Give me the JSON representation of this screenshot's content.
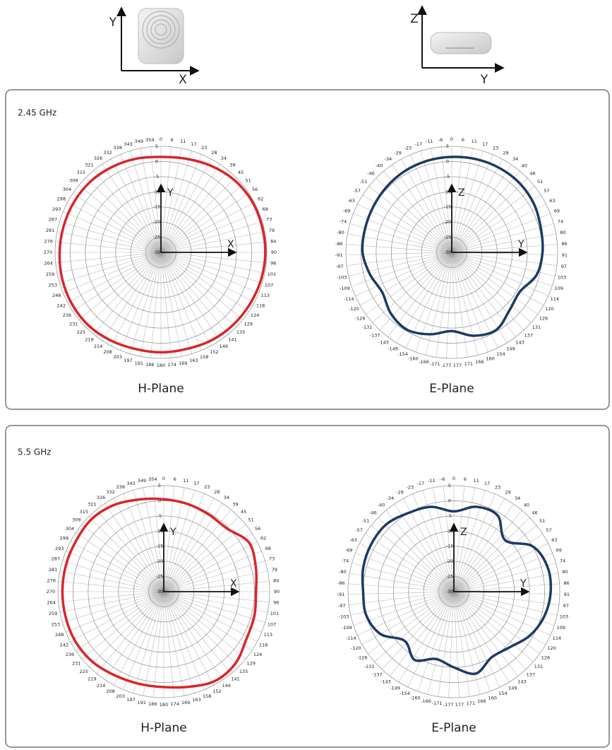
{
  "header": {
    "icons": [
      {
        "vertical": "Y",
        "horizontal": "X"
      },
      {
        "vertical": "Z",
        "horizontal": "Y"
      }
    ]
  },
  "sections": [
    {
      "label": "2.45 GHz"
    },
    {
      "label": "5.5 GHz"
    }
  ],
  "chart_data": [
    {
      "type": "polar",
      "title": "H-Plane",
      "axis_labels": {
        "vertical": "Y",
        "horizontal": "X"
      },
      "angles": [
        0,
        6,
        11,
        17,
        23,
        28,
        34,
        39,
        45,
        51,
        56,
        62,
        68,
        73,
        79,
        84,
        90,
        96,
        101,
        107,
        113,
        118,
        124,
        129,
        135,
        141,
        146,
        152,
        158,
        163,
        169,
        174,
        180,
        186,
        191,
        197,
        203,
        208,
        214,
        219,
        225,
        231,
        236,
        242,
        248,
        253,
        259,
        264,
        270,
        276,
        281,
        287,
        293,
        298,
        304,
        309,
        315,
        321,
        326,
        332,
        338,
        343,
        349,
        354
      ],
      "rlim": [
        -30,
        5
      ],
      "rticks": [
        5,
        0,
        -5,
        -10,
        -15,
        -20,
        -25,
        -30
      ],
      "theta": [
        0,
        15,
        30,
        45,
        60,
        75,
        90,
        105,
        120,
        135,
        150,
        165,
        180,
        195,
        210,
        225,
        240,
        255,
        270,
        285,
        300,
        315,
        330,
        345
      ],
      "values": [
        1.5,
        2,
        3,
        4,
        4.5,
        4.5,
        4.5,
        4.3,
        4,
        3.8,
        3.5,
        3,
        3,
        3,
        3.5,
        4,
        4,
        3.8,
        3.5,
        3.3,
        3.2,
        3,
        2.5,
        2
      ],
      "color": "#d7262b"
    },
    {
      "type": "polar",
      "title": "E-Plane",
      "axis_labels": {
        "vertical": "Z",
        "horizontal": "Y"
      },
      "angles": [
        0,
        6,
        11,
        17,
        23,
        29,
        34,
        40,
        46,
        51,
        57,
        63,
        69,
        74,
        80,
        86,
        91,
        97,
        103,
        109,
        114,
        120,
        126,
        131,
        137,
        143,
        149,
        154,
        160,
        166,
        171,
        177,
        -177,
        -171,
        -166,
        -160,
        -154,
        -149,
        -143,
        -137,
        -131,
        -126,
        -120,
        -114,
        -109,
        -103,
        -97,
        -91,
        -86,
        -80,
        -74,
        -69,
        -63,
        -57,
        -51,
        -46,
        -40,
        -34,
        -29,
        -23,
        -17,
        -11,
        -6
      ],
      "rlim": [
        -30,
        5
      ],
      "rticks": [
        5,
        0,
        -5,
        -10,
        -15,
        -20,
        -25,
        -30
      ],
      "theta": [
        0,
        15,
        30,
        45,
        60,
        75,
        90,
        105,
        120,
        135,
        150,
        165,
        180,
        195,
        210,
        225,
        240,
        255,
        270,
        285,
        300,
        315,
        330,
        345
      ],
      "values": [
        1.5,
        1.8,
        2,
        2,
        1.5,
        0.5,
        0,
        -1,
        -4,
        -3,
        -0.5,
        -1.5,
        -4,
        -2,
        -0.5,
        -1.5,
        -3.5,
        -2,
        -0.5,
        -0.3,
        0,
        0.5,
        1,
        1.3
      ],
      "color": "#1d3a63"
    },
    {
      "type": "polar",
      "title": "H-Plane",
      "axis_labels": {
        "vertical": "Y",
        "horizontal": "X"
      },
      "angles": [
        0,
        6,
        11,
        17,
        23,
        28,
        34,
        39,
        45,
        51,
        56,
        62,
        68,
        73,
        79,
        84,
        90,
        96,
        101,
        107,
        113,
        118,
        124,
        129,
        135,
        141,
        146,
        152,
        158,
        163,
        169,
        174,
        180,
        186,
        191,
        197,
        203,
        208,
        214,
        219,
        225,
        231,
        236,
        242,
        248,
        253,
        259,
        264,
        270,
        276,
        281,
        287,
        293,
        298,
        304,
        309,
        315,
        321,
        326,
        332,
        338,
        343,
        349,
        354
      ],
      "rlim": [
        -30,
        5
      ],
      "rticks": [
        5,
        0,
        -5,
        -10,
        -15,
        -20,
        -25,
        -30
      ],
      "theta": [
        0,
        15,
        30,
        45,
        60,
        75,
        90,
        105,
        120,
        135,
        150,
        165,
        180,
        195,
        210,
        225,
        240,
        255,
        270,
        285,
        300,
        315,
        330,
        345
      ],
      "values": [
        0.5,
        0,
        -0.5,
        -0.5,
        2.5,
        1.5,
        0.5,
        1,
        1.5,
        3.5,
        4,
        2.5,
        1.5,
        1.5,
        2,
        3,
        3.5,
        3.5,
        3.5,
        3.5,
        3.5,
        3.8,
        3,
        1.5
      ],
      "color": "#d7262b"
    },
    {
      "type": "polar",
      "title": "E-Plane",
      "axis_labels": {
        "vertical": "Z",
        "horizontal": "Y"
      },
      "angles": [
        0,
        6,
        11,
        17,
        23,
        29,
        34,
        40,
        46,
        51,
        57,
        63,
        69,
        74,
        80,
        86,
        91,
        97,
        103,
        109,
        114,
        120,
        126,
        131,
        137,
        143,
        149,
        154,
        160,
        166,
        171,
        177,
        -177,
        -171,
        -166,
        -160,
        -154,
        -149,
        -143,
        -137,
        -131,
        -126,
        -120,
        -114,
        -109,
        -103,
        -97,
        -91,
        -86,
        -80,
        -74,
        -69,
        -63,
        -57,
        -51,
        -46,
        -40,
        -34,
        -29,
        -23,
        -17,
        -11,
        -6
      ],
      "rlim": [
        -30,
        5
      ],
      "rticks": [
        5,
        0,
        -5,
        -10,
        -15,
        -20,
        -25,
        -30
      ],
      "theta": [
        0,
        15,
        30,
        45,
        60,
        75,
        90,
        105,
        120,
        135,
        150,
        165,
        180,
        195,
        210,
        225,
        240,
        255,
        270,
        285,
        300,
        315,
        330,
        345
      ],
      "values": [
        -3.5,
        -1,
        -1,
        -6,
        0,
        2,
        2,
        1,
        -1,
        -4,
        -5,
        -2,
        -5,
        -7,
        -4,
        -7,
        -2,
        0,
        0,
        1,
        1.5,
        1.5,
        0,
        -1
      ],
      "color": "#1d3a63"
    }
  ]
}
